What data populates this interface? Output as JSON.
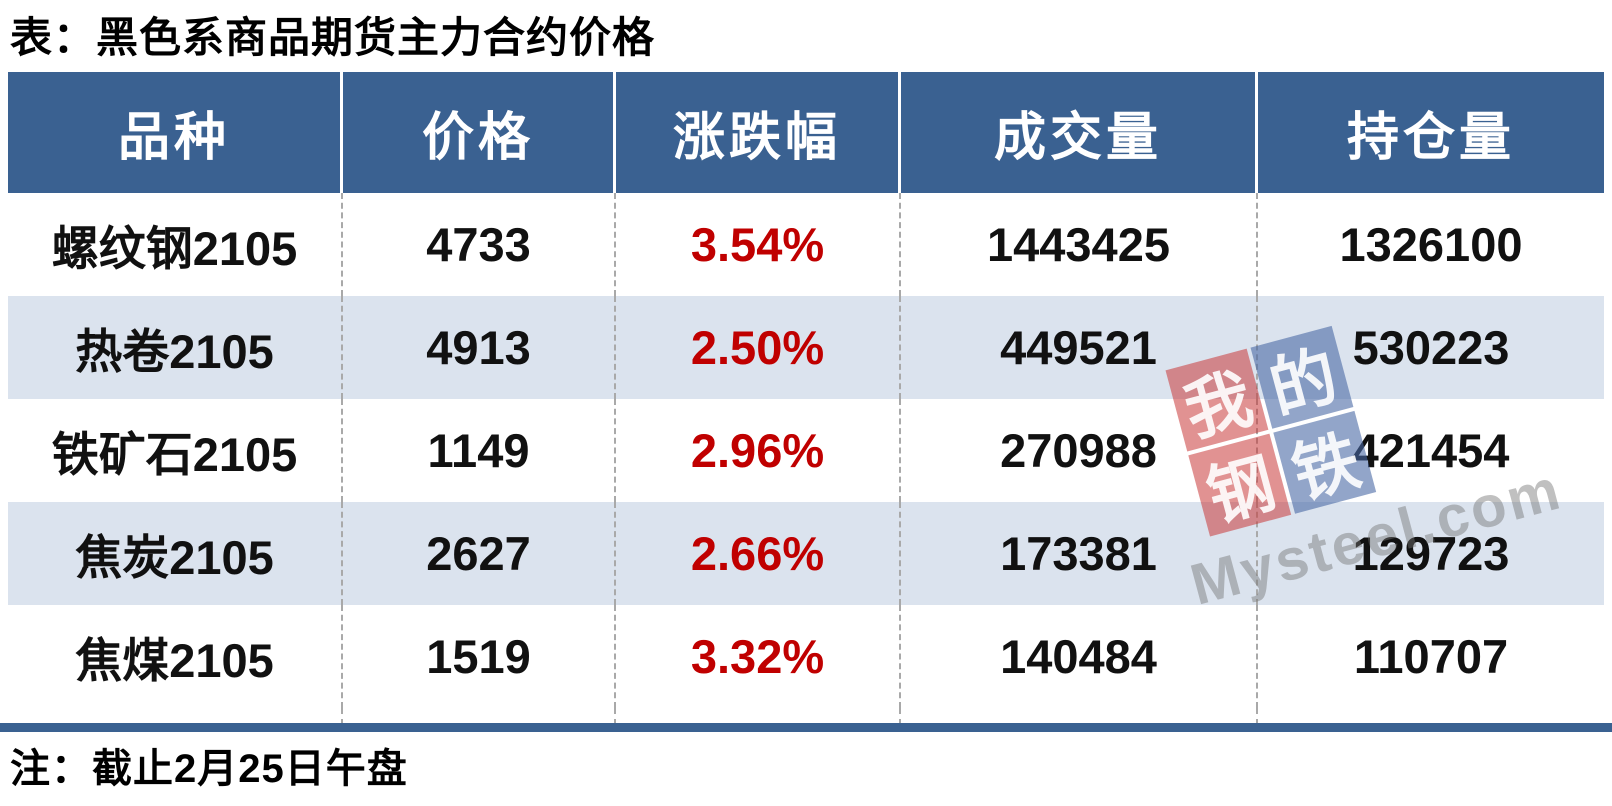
{
  "title": "表：黑色系商品期货主力合约价格",
  "note": "注：截止2月25日午盘",
  "columns": [
    "品种",
    "价格",
    "涨跌幅",
    "成交量",
    "持仓量"
  ],
  "rows": [
    {
      "name": "螺纹钢2105",
      "price": "4733",
      "change": "3.54%",
      "volume": "1443425",
      "open_interest": "1326100"
    },
    {
      "name": "热卷2105",
      "price": "4913",
      "change": "2.50%",
      "volume": "449521",
      "open_interest": "530223"
    },
    {
      "name": "铁矿石2105",
      "price": "1149",
      "change": "2.96%",
      "volume": "270988",
      "open_interest": "421454"
    },
    {
      "name": "焦炭2105",
      "price": "2627",
      "change": "2.66%",
      "volume": "173381",
      "open_interest": "129723"
    },
    {
      "name": "焦煤2105",
      "price": "1519",
      "change": "3.32%",
      "volume": "140484",
      "open_interest": "110707"
    }
  ],
  "watermark": {
    "tiles": [
      "我",
      "的",
      "钢",
      "铁"
    ],
    "site": "Mysteel.com"
  },
  "colors": {
    "header_bg": "#3a6191",
    "row_shade": "#dbe3ee",
    "change_red": "#c00000",
    "divider_bar": "#3a6191"
  },
  "chart_data": {
    "type": "table",
    "title": "表：黑色系商品期货主力合约价格",
    "columns": [
      "品种",
      "价格",
      "涨跌幅",
      "成交量",
      "持仓量"
    ],
    "rows": [
      [
        "螺纹钢2105",
        4733,
        "3.54%",
        1443425,
        1326100
      ],
      [
        "热卷2105",
        4913,
        "2.50%",
        449521,
        530223
      ],
      [
        "铁矿石2105",
        1149,
        "2.96%",
        270988,
        421454
      ],
      [
        "焦炭2105",
        2627,
        "2.66%",
        173381,
        129723
      ],
      [
        "焦煤2105",
        1519,
        "3.32%",
        140484,
        110707
      ]
    ],
    "note": "注：截止2月25日午盘",
    "layout": {
      "header_style": "dark-blue band, white serif text",
      "row_striping": "white / pale blue",
      "column_separators": "gray dashed vertical lines",
      "change_column_color": "#c00000"
    }
  }
}
